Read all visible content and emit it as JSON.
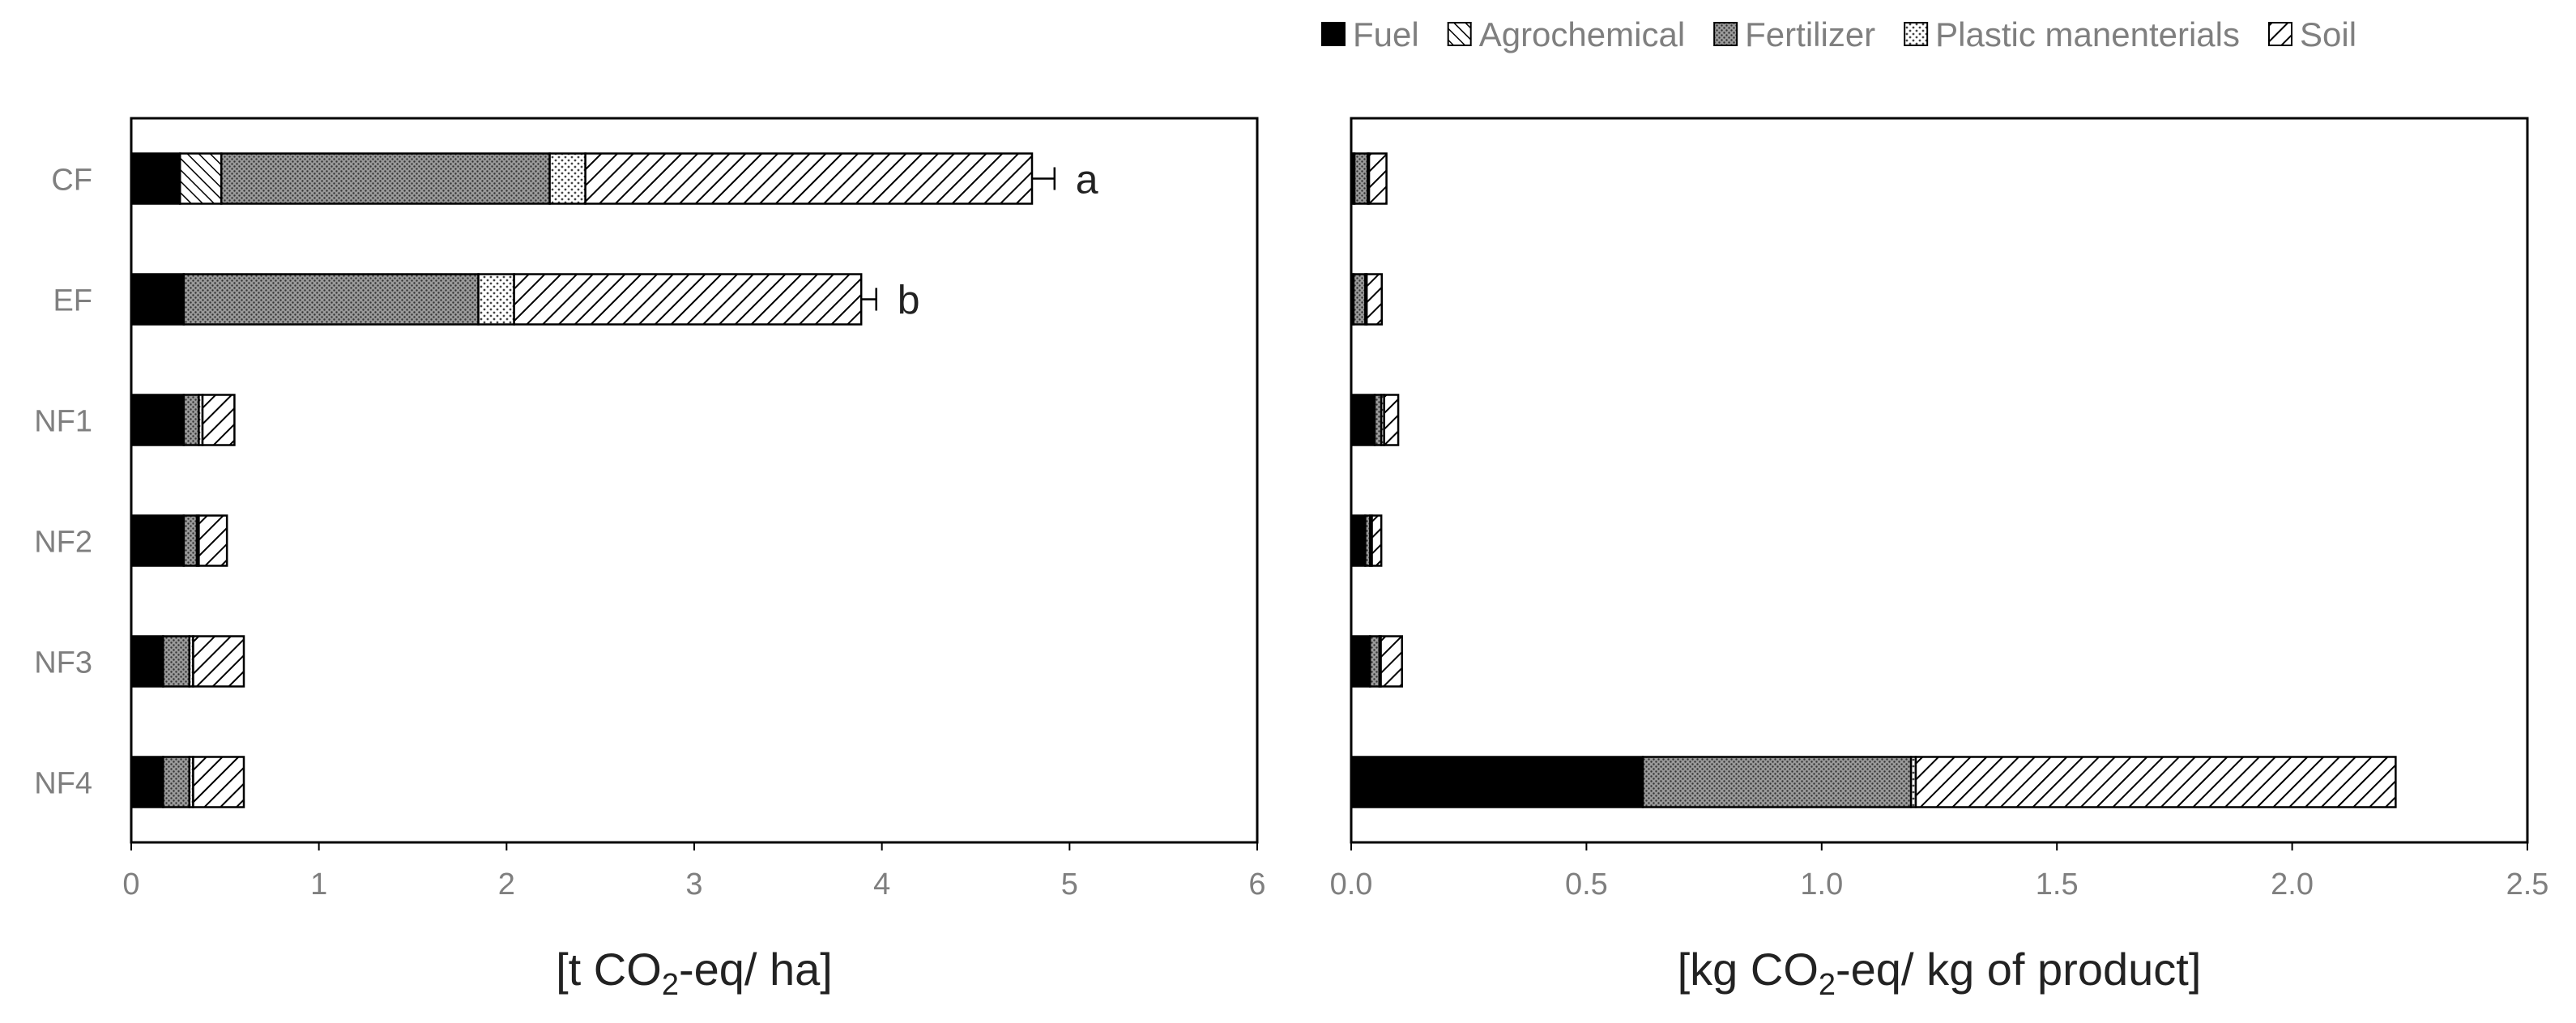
{
  "legend": {
    "items": [
      {
        "label": "Fuel",
        "pattern": "solid",
        "color": "#000000"
      },
      {
        "label": "Agrochemical",
        "pattern": "diag-dense",
        "color": "#000000"
      },
      {
        "label": "Fertilizer",
        "pattern": "dots-dark",
        "color": "#000000"
      },
      {
        "label": "Plastic manenterials",
        "pattern": "dots-light",
        "color": "#000000"
      },
      {
        "label": "Soil",
        "pattern": "diag-wide",
        "color": "#000000"
      }
    ]
  },
  "chart_data": [
    {
      "type": "bar",
      "orientation": "horizontal",
      "stacked": true,
      "categories": [
        "CF",
        "EF",
        "NF1",
        "NF2",
        "NF3",
        "NF4"
      ],
      "xlim": [
        0,
        6
      ],
      "xticks": [
        "0",
        "1",
        "2",
        "3",
        "4",
        "5",
        "6"
      ],
      "xlabel": {
        "pre": "[t CO",
        "sub": "2",
        "post": "-eq/ ha]"
      },
      "series": [
        {
          "name": "Fuel",
          "values": [
            0.26,
            0.28,
            0.28,
            0.28,
            0.17,
            0.17
          ]
        },
        {
          "name": "Agrochemical",
          "values": [
            0.22,
            0.0,
            0.0,
            0.0,
            0.0,
            0.0
          ]
        },
        {
          "name": "Fertilizer",
          "values": [
            1.75,
            1.57,
            0.08,
            0.07,
            0.14,
            0.14
          ]
        },
        {
          "name": "Plastic manenterials",
          "values": [
            0.19,
            0.19,
            0.02,
            0.01,
            0.02,
            0.02
          ]
        },
        {
          "name": "Soil",
          "values": [
            2.38,
            1.85,
            0.17,
            0.15,
            0.27,
            0.27
          ]
        }
      ],
      "error": [
        0.12,
        0.08,
        0.0,
        0.0,
        0.0,
        0.0
      ],
      "annotations": [
        "a",
        "b",
        "",
        "",
        "",
        ""
      ]
    },
    {
      "type": "bar",
      "orientation": "horizontal",
      "stacked": true,
      "categories": [
        "CF",
        "EF",
        "NF1",
        "NF2",
        "NF3",
        "NF4"
      ],
      "xlim": [
        0,
        2.5
      ],
      "xticks": [
        "0.0",
        "0.5",
        "1.0",
        "1.5",
        "2.0",
        "2.5"
      ],
      "xlabel": {
        "pre": "[kg CO",
        "sub": "2",
        "post": "-eq/ kg of product]"
      },
      "series": [
        {
          "name": "Fuel",
          "values": [
            0.005,
            0.005,
            0.05,
            0.03,
            0.04,
            0.62
          ]
        },
        {
          "name": "Agrochemical",
          "values": [
            0.002,
            0.0,
            0.0,
            0.0,
            0.0,
            0.0
          ]
        },
        {
          "name": "Fertilizer",
          "values": [
            0.028,
            0.025,
            0.014,
            0.01,
            0.02,
            0.57
          ]
        },
        {
          "name": "Plastic manenterials",
          "values": [
            0.003,
            0.003,
            0.006,
            0.004,
            0.003,
            0.01
          ]
        },
        {
          "name": "Soil",
          "values": [
            0.037,
            0.032,
            0.03,
            0.02,
            0.045,
            1.02
          ]
        }
      ],
      "error": [
        0,
        0,
        0,
        0,
        0,
        0
      ],
      "annotations": [
        "",
        "",
        "",
        "",
        "",
        ""
      ]
    }
  ]
}
